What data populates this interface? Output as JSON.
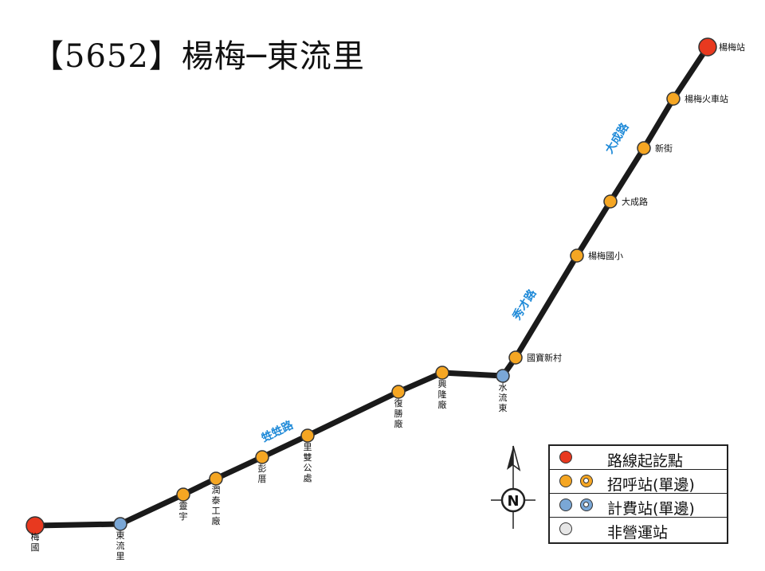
{
  "title": "【5652】楊梅─東流里",
  "colors": {
    "route_line": "#1a1a1a",
    "terminal": "#e8391f",
    "flag_stop": "#f5a623",
    "fare_stop": "#7aa7d6",
    "non_operating": "#e6e6e6",
    "road_label": "#1f8ad8"
  },
  "stops": [
    {
      "name": "楊梅站",
      "type": "terminal"
    },
    {
      "name": "楊梅火車站",
      "type": "flag_stop"
    },
    {
      "name": "新街",
      "type": "flag_stop"
    },
    {
      "name": "大成路",
      "type": "flag_stop"
    },
    {
      "name": "楊梅國小",
      "type": "flag_stop"
    },
    {
      "name": "國寶新村",
      "type": "flag_stop"
    },
    {
      "name": "水流東",
      "type": "fare_stop"
    },
    {
      "name": "興隆廠",
      "type": "flag_stop"
    },
    {
      "name": "復勝廠",
      "type": "flag_stop"
    },
    {
      "name": "里雙公處",
      "type": "flag_stop"
    },
    {
      "name": "彭厝",
      "type": "flag_stop"
    },
    {
      "name": "潤泰工廠",
      "type": "flag_stop"
    },
    {
      "name": "靈宇",
      "type": "flag_stop"
    },
    {
      "name": "東流里",
      "type": "fare_stop"
    },
    {
      "name": "梅國",
      "type": "terminal"
    }
  ],
  "roads": [
    {
      "name": "大成路"
    },
    {
      "name": "秀才路"
    },
    {
      "name": "甡甡路"
    }
  ],
  "compass": {
    "label": "N",
    "icon": "north-arrow-icon"
  },
  "legend": [
    {
      "symbol": "terminal",
      "text": "路線起訖點"
    },
    {
      "symbol": "flag_stop",
      "text": "招呼站(單邊)"
    },
    {
      "symbol": "fare_stop",
      "text": "計費站(單邊)"
    },
    {
      "symbol": "non_operating",
      "text": "非營運站"
    }
  ]
}
